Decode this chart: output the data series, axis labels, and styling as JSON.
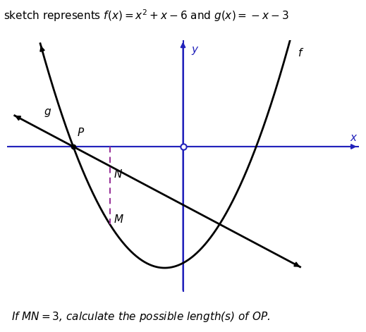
{
  "bg_color": "#ffffff",
  "axis_color": "#2222bb",
  "curve_color": "#000000",
  "line_color": "#000000",
  "dashed_color": "#993399",
  "label_f": "f",
  "label_g": "g",
  "label_P": "P",
  "label_N": "N",
  "label_M": "M",
  "label_x": "x",
  "label_y": "y",
  "title_text": "sketch represents $f(x) = x^2 + x - 6$ and $g(x) = -x - 3$",
  "footer_text": "If $MN = 3$, calculate the possible length(s) of $OP$.",
  "xlim": [
    -4.8,
    4.8
  ],
  "ylim": [
    -7.5,
    5.5
  ],
  "P_x": -3,
  "P_y": 0,
  "O_x": 0,
  "O_y": 0,
  "N_x": -2,
  "M_x": -2,
  "font_size_labels": 11,
  "font_size_title": 11,
  "font_size_footer": 11,
  "axis_lw": 1.5,
  "curve_lw": 2.0,
  "dashed_lw": 1.5
}
